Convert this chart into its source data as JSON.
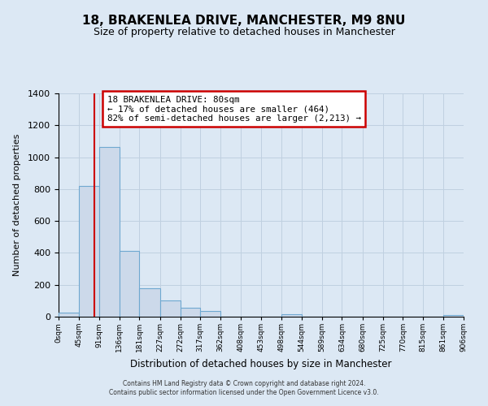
{
  "title": "18, BRAKENLEA DRIVE, MANCHESTER, M9 8NU",
  "subtitle": "Size of property relative to detached houses in Manchester",
  "xlabel": "Distribution of detached houses by size in Manchester",
  "ylabel": "Number of detached properties",
  "bin_edges": [
    0,
    45,
    91,
    136,
    181,
    227,
    272,
    317,
    362,
    408,
    453,
    498,
    544,
    589,
    634,
    680,
    725,
    770,
    815,
    861,
    906
  ],
  "bin_labels": [
    "0sqm",
    "45sqm",
    "91sqm",
    "136sqm",
    "181sqm",
    "227sqm",
    "272sqm",
    "317sqm",
    "362sqm",
    "408sqm",
    "453sqm",
    "498sqm",
    "544sqm",
    "589sqm",
    "634sqm",
    "680sqm",
    "725sqm",
    "770sqm",
    "815sqm",
    "861sqm",
    "906sqm"
  ],
  "bar_heights": [
    25,
    820,
    1065,
    410,
    180,
    100,
    55,
    35,
    0,
    0,
    0,
    15,
    0,
    0,
    0,
    0,
    0,
    0,
    0,
    10
  ],
  "bar_color": "#ccd9ea",
  "bar_edge_color": "#6fa8d0",
  "vline_x": 80,
  "vline_color": "#cc0000",
  "ylim": [
    0,
    1400
  ],
  "yticks": [
    0,
    200,
    400,
    600,
    800,
    1000,
    1200,
    1400
  ],
  "annotation_title": "18 BRAKENLEA DRIVE: 80sqm",
  "annotation_line1": "← 17% of detached houses are smaller (464)",
  "annotation_line2": "82% of semi-detached houses are larger (2,213) →",
  "annotation_box_color": "#ffffff",
  "annotation_box_edge": "#cc0000",
  "grid_color": "#c0d0e0",
  "bg_color": "#dce8f4",
  "title_fontsize": 11,
  "subtitle_fontsize": 9,
  "footer1": "Contains HM Land Registry data © Crown copyright and database right 2024.",
  "footer2": "Contains public sector information licensed under the Open Government Licence v3.0."
}
